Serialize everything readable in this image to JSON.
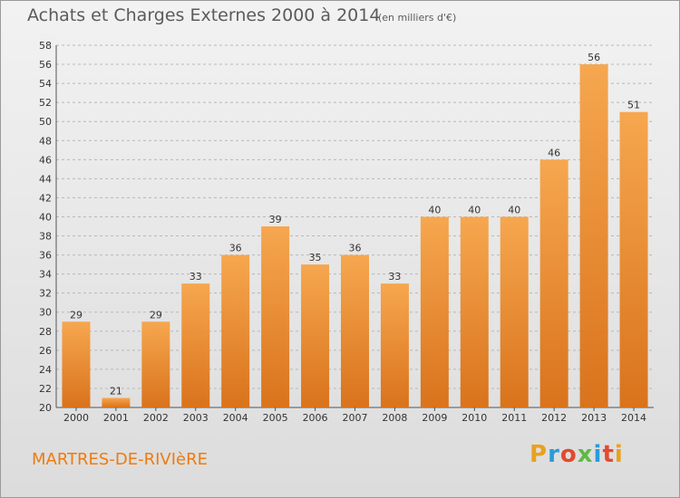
{
  "title": "Achats et Charges Externes 2000 à 2014",
  "subtitle": "(en milliers d'€)",
  "commune": "MARTRES-DE-RIVIèRE",
  "logo": {
    "text": "Proxiti",
    "colors": [
      "#e8a21f",
      "#2a9bd8",
      "#e34a2f",
      "#5fb946",
      "#2a9bd8",
      "#e34a2f",
      "#e8a21f"
    ]
  },
  "colors": {
    "bar_top": "#f6a74f",
    "bar_bottom": "#d9731c",
    "grid": "#b8b8b8",
    "commune": "#ee7b0e"
  },
  "chart_data": {
    "type": "bar",
    "categories": [
      "2000",
      "2001",
      "2002",
      "2003",
      "2004",
      "2005",
      "2006",
      "2007",
      "2008",
      "2009",
      "2010",
      "2011",
      "2012",
      "2013",
      "2014"
    ],
    "values": [
      29,
      21,
      29,
      33,
      36,
      39,
      35,
      36,
      33,
      40,
      40,
      40,
      46,
      56,
      51
    ],
    "title": "Achats et Charges Externes 2000 à 2014",
    "subtitle": "(en milliers d'€)",
    "xlabel": "",
    "ylabel": "",
    "ylim": [
      20,
      58
    ],
    "yticks": [
      20,
      22,
      24,
      26,
      28,
      30,
      32,
      34,
      36,
      38,
      40,
      42,
      44,
      46,
      48,
      50,
      52,
      54,
      56,
      58
    ],
    "grid": true,
    "data_labels": true
  }
}
